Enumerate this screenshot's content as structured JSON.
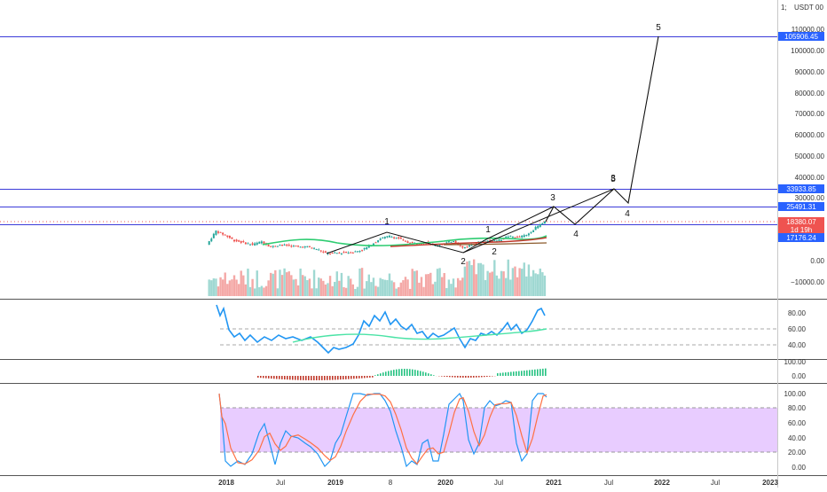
{
  "header": {
    "currency": "USDT",
    "top_partial_label": "1;",
    "top_partial_label2": "00"
  },
  "colors": {
    "accent_blue": "#2962ff",
    "level_line": "#3b3bd9",
    "price_label_red": "#ef5350",
    "candle_up": "#26a69a",
    "candle_down": "#ef5350",
    "rsi_line": "#2196f3",
    "rsi_ma": "#4be3a6",
    "stoch_k": "#2196f3",
    "stoch_d": "#ff7043",
    "stoch_band": "#e8ccff",
    "ma_green": "#2ecc71",
    "ma_red": "#c0392b",
    "ma_brown": "#8b5a2b"
  },
  "price_axis": {
    "ticks": [
      "110000.00",
      "100000.00",
      "90000.00",
      "80000.00",
      "70000.00",
      "60000.00",
      "50000.00",
      "40000.00",
      "30000.00",
      "0.00",
      "−10000.00"
    ],
    "level_labels": [
      {
        "text": "105906.45",
        "color": "#2962ff",
        "value": 105906.45
      },
      {
        "text": "33933.85",
        "color": "#2962ff",
        "value": 33933.85
      },
      {
        "text": "25491.31",
        "color": "#2962ff",
        "value": 25491.31
      },
      {
        "text": "18380.07",
        "color": "#ef5350",
        "value": 18380.07
      },
      {
        "text": "1d 19h",
        "color": "#ef5350"
      },
      {
        "text": "17176.24",
        "color": "#2962ff",
        "value": 17176.24
      }
    ]
  },
  "time_axis": {
    "labels": [
      "2018",
      "Jul",
      "2019",
      "8",
      "2020",
      "Jul",
      "2021",
      "Jul",
      "2022",
      "Jul",
      "2023"
    ]
  },
  "wave_labels": [
    "1",
    "2",
    "1",
    "2",
    "3",
    "4",
    "3",
    "4",
    "5",
    "5"
  ],
  "rsi_axis": {
    "ticks": [
      "80.00",
      "60.00",
      "40.00"
    ]
  },
  "macd_axis": {
    "ticks": [
      "100.00",
      "0.00"
    ]
  },
  "stoch_axis": {
    "ticks": [
      "100.00",
      "80.00",
      "60.00",
      "40.00",
      "20.00",
      "0.00"
    ]
  },
  "chart_data": {
    "type": "line",
    "title": "",
    "xlabel": "",
    "ylabel": "USDT",
    "ylim": [
      -10000,
      110000
    ],
    "series": [
      {
        "name": "",
        "x": [
          "2017-11",
          "2017-12",
          "2018-01",
          "2018-02",
          "2018-03",
          "2018-04",
          "2018-05",
          "2018-06",
          "2018-07",
          "2018-08",
          "2018-09",
          "2018-10",
          "2018-11",
          "2018-12",
          "2019-01",
          "2019-02",
          "2019-03",
          "2019-04",
          "2019-05",
          "2019-06",
          "2019-07",
          "2019-08",
          "2019-09",
          "2019-10",
          "2019-11",
          "2019-12",
          "2020-01",
          "2020-02",
          "2020-03",
          "2020-04",
          "2020-05",
          "2020-06",
          "2020-07",
          "2020-08",
          "2020-09",
          "2020-10",
          "2020-11",
          "2020-12"
        ],
        "values": [
          7500,
          14000,
          12000,
          9500,
          8500,
          7500,
          9000,
          6500,
          7500,
          7000,
          6500,
          6500,
          5500,
          3500,
          3500,
          3800,
          4000,
          5000,
          7500,
          10500,
          11500,
          10500,
          8500,
          8000,
          8500,
          7200,
          8000,
          9500,
          6000,
          7500,
          9000,
          9500,
          9500,
          11500,
          11000,
          12000,
          15500,
          18380
        ]
      }
    ],
    "projection": {
      "name": "",
      "x": [
        "2020-12",
        "2021-02",
        "2021-06",
        "2021-08",
        "2022-01"
      ],
      "values": [
        25491.31,
        18000,
        33933.85,
        22000,
        105906.45
      ]
    },
    "levels": [
      105906.45,
      33933.85,
      25491.31,
      17176.24
    ]
  }
}
